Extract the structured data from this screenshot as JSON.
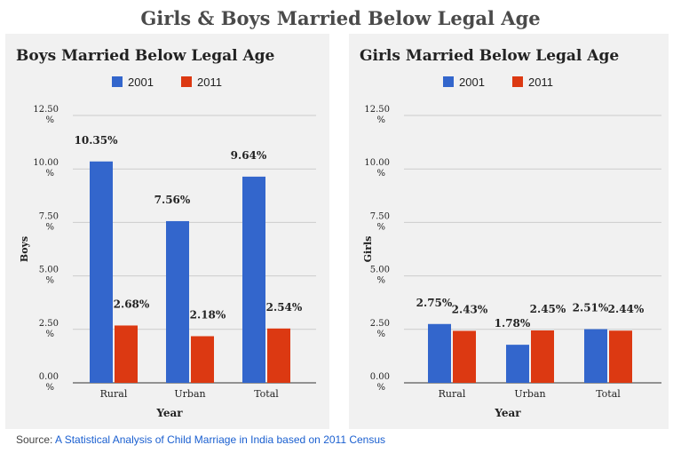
{
  "page": {
    "title": "Girls & Boys Married Below Legal Age",
    "source_prefix": "Source: ",
    "source_link": "A Statistical Analysis of Child Marriage in India based on 2011 Census"
  },
  "colors": {
    "series_2001": "#3366cc",
    "series_2011": "#dc3912",
    "panel_bg": "#f1f1f1",
    "grid": "#cccccc"
  },
  "chart_data": [
    {
      "type": "bar",
      "title": "Boys Married Below Legal Age",
      "xlabel": "Year",
      "ylabel": "Boys",
      "categories": [
        "Rural",
        "Urban",
        "Total"
      ],
      "series": [
        {
          "name": "2001",
          "values": [
            10.35,
            7.56,
            9.64
          ],
          "labels": [
            "10.35%",
            "7.56%",
            "9.64%"
          ]
        },
        {
          "name": "2011",
          "values": [
            2.68,
            2.18,
            2.54
          ],
          "labels": [
            "2.68%",
            "2.18%",
            "2.54%"
          ]
        }
      ],
      "yticks": [
        0,
        2.5,
        5,
        7.5,
        10,
        12.5
      ],
      "ytick_labels": [
        "0.00",
        "2.50",
        "5.00",
        "7.50",
        "10.00",
        "12.50"
      ],
      "ytick_unit": "%",
      "ylim": [
        0,
        12.5
      ],
      "grid": true,
      "legend": "top"
    },
    {
      "type": "bar",
      "title": "Girls Married Below Legal Age",
      "xlabel": "Year",
      "ylabel": "Girls",
      "categories": [
        "Rural",
        "Urban",
        "Total"
      ],
      "series": [
        {
          "name": "2001",
          "values": [
            2.75,
            1.78,
            2.51
          ],
          "labels": [
            "2.75%",
            "1.78%",
            "2.51%"
          ]
        },
        {
          "name": "2011",
          "values": [
            2.43,
            2.45,
            2.44
          ],
          "labels": [
            "2.43%",
            "2.45%",
            "2.44%"
          ]
        }
      ],
      "yticks": [
        0,
        2.5,
        5,
        7.5,
        10,
        12.5
      ],
      "ytick_labels": [
        "0.00",
        "2.50",
        "5.00",
        "7.50",
        "10.00",
        "12.50"
      ],
      "ytick_unit": "%",
      "ylim": [
        0,
        12.5
      ],
      "grid": true,
      "legend": "top"
    }
  ]
}
